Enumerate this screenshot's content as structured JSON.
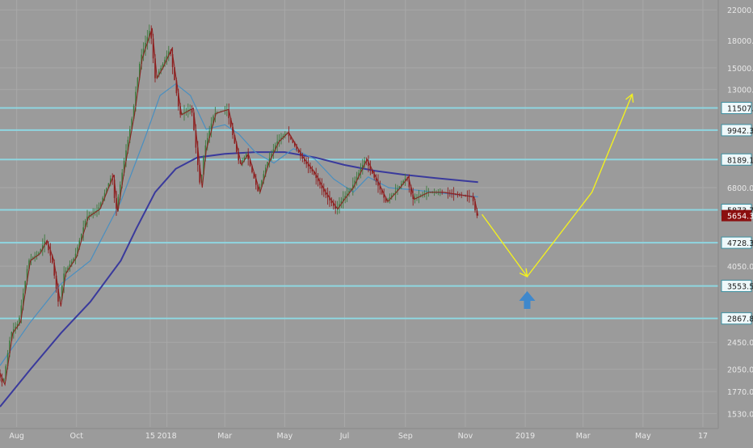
{
  "chart_data": {
    "type": "candlestick",
    "title": "",
    "xlabel": "",
    "ylabel": "",
    "yscale": "log",
    "ylim": [
      1400,
      22500
    ],
    "grid": true,
    "y_ticks": [
      "22000.0",
      "18000.0",
      "15000.0",
      "13000.0",
      "11507.5",
      "9942.3",
      "8189.1",
      "6800.0",
      "5873.7",
      "5654.3",
      "4728.3",
      "4050.0",
      "3553.5",
      "2867.8",
      "2450.0",
      "2050.0",
      "1770.0",
      "1530.0"
    ],
    "x_ticks": [
      "Aug",
      "Oct",
      "15",
      "2018",
      "Mar",
      "May",
      "Jul",
      "Sep",
      "Nov",
      "2019",
      "Mar",
      "May",
      "17"
    ],
    "x_tick_dates": [
      "2017-08-01",
      "2017-10-01",
      "2017-12-15",
      "2018-01-01",
      "2018-03-01",
      "2018-05-01",
      "2018-07-01",
      "2018-09-01",
      "2018-11-01",
      "2019-01-01",
      "2019-03-01",
      "2019-05-01",
      "2019-07-01"
    ],
    "x_range": [
      "2017-07-15",
      "2019-07-15"
    ],
    "horizontal_levels": [
      11507.5,
      9942.3,
      8189.1,
      5873.7,
      4728.3,
      3553.5,
      2867.8
    ],
    "current_price": 5654.3,
    "price_path": [
      [
        "2017-07-15",
        2000
      ],
      [
        "2017-07-20",
        1850
      ],
      [
        "2017-07-28",
        2600
      ],
      [
        "2017-08-05",
        2800
      ],
      [
        "2017-08-15",
        4200
      ],
      [
        "2017-08-25",
        4400
      ],
      [
        "2017-09-01",
        4800
      ],
      [
        "2017-09-08",
        4200
      ],
      [
        "2017-09-15",
        3100
      ],
      [
        "2017-09-20",
        3850
      ],
      [
        "2017-10-01",
        4300
      ],
      [
        "2017-10-13",
        5600
      ],
      [
        "2017-10-25",
        5900
      ],
      [
        "2017-11-08",
        7400
      ],
      [
        "2017-11-12",
        5800
      ],
      [
        "2017-11-20",
        8000
      ],
      [
        "2017-11-29",
        11000
      ],
      [
        "2017-12-07",
        16000
      ],
      [
        "2017-12-17",
        19500
      ],
      [
        "2017-12-22",
        14000
      ],
      [
        "2017-12-28",
        15000
      ],
      [
        "2018-01-06",
        17000
      ],
      [
        "2018-01-16",
        11000
      ],
      [
        "2018-01-28",
        11500
      ],
      [
        "2018-02-06",
        6800
      ],
      [
        "2018-02-10",
        8700
      ],
      [
        "2018-02-20",
        11100
      ],
      [
        "2018-03-05",
        11400
      ],
      [
        "2018-03-18",
        7900
      ],
      [
        "2018-03-25",
        8500
      ],
      [
        "2018-04-06",
        6600
      ],
      [
        "2018-04-15",
        8000
      ],
      [
        "2018-04-25",
        9200
      ],
      [
        "2018-05-05",
        9800
      ],
      [
        "2018-05-20",
        8300
      ],
      [
        "2018-06-01",
        7500
      ],
      [
        "2018-06-12",
        6600
      ],
      [
        "2018-06-24",
        5900
      ],
      [
        "2018-07-01",
        6300
      ],
      [
        "2018-07-10",
        6800
      ],
      [
        "2018-07-24",
        8200
      ],
      [
        "2018-08-05",
        7000
      ],
      [
        "2018-08-14",
        6200
      ],
      [
        "2018-08-25",
        6700
      ],
      [
        "2018-09-04",
        7300
      ],
      [
        "2018-09-10",
        6300
      ],
      [
        "2018-09-25",
        6600
      ],
      [
        "2018-10-10",
        6600
      ],
      [
        "2018-10-25",
        6500
      ],
      [
        "2018-11-10",
        6400
      ],
      [
        "2018-11-14",
        5654.3
      ]
    ],
    "ma_short": [
      [
        "2017-07-15",
        2100
      ],
      [
        "2017-08-15",
        2800
      ],
      [
        "2017-09-15",
        3600
      ],
      [
        "2017-10-15",
        4200
      ],
      [
        "2017-11-15",
        6200
      ],
      [
        "2017-12-10",
        9500
      ],
      [
        "2017-12-25",
        12500
      ],
      [
        "2018-01-10",
        13500
      ],
      [
        "2018-01-25",
        12500
      ],
      [
        "2018-02-10",
        10000
      ],
      [
        "2018-03-01",
        10300
      ],
      [
        "2018-03-15",
        9700
      ],
      [
        "2018-04-01",
        8600
      ],
      [
        "2018-04-20",
        8000
      ],
      [
        "2018-05-10",
        8800
      ],
      [
        "2018-06-01",
        8200
      ],
      [
        "2018-06-20",
        7200
      ],
      [
        "2018-07-10",
        6600
      ],
      [
        "2018-07-25",
        7300
      ],
      [
        "2018-08-15",
        6800
      ],
      [
        "2018-09-10",
        6700
      ],
      [
        "2018-10-10",
        6550
      ],
      [
        "2018-11-14",
        6400
      ]
    ],
    "ma_long": [
      [
        "2017-07-15",
        1600
      ],
      [
        "2017-08-15",
        2050
      ],
      [
        "2017-09-15",
        2600
      ],
      [
        "2017-10-15",
        3200
      ],
      [
        "2017-11-15",
        4200
      ],
      [
        "2017-12-01",
        5200
      ],
      [
        "2017-12-20",
        6600
      ],
      [
        "2018-01-10",
        7700
      ],
      [
        "2018-02-01",
        8300
      ],
      [
        "2018-03-01",
        8500
      ],
      [
        "2018-04-01",
        8600
      ],
      [
        "2018-05-01",
        8600
      ],
      [
        "2018-06-01",
        8300
      ],
      [
        "2018-07-01",
        7900
      ],
      [
        "2018-08-01",
        7600
      ],
      [
        "2018-09-01",
        7400
      ],
      [
        "2018-10-01",
        7250
      ],
      [
        "2018-11-14",
        7050
      ]
    ],
    "projection": [
      [
        "2018-11-18",
        5700
      ],
      [
        "2019-01-03",
        3780
      ],
      [
        "2019-03-10",
        6600
      ],
      [
        "2019-04-20",
        12600
      ]
    ],
    "colors": {
      "background": "#9b9b9b",
      "grid": "#a8a8a8",
      "level_line": "#8ed6e0",
      "price": "#8e1f1f",
      "price_up": "#3d7a3d",
      "ma_short": "#4a8fc0",
      "ma_long": "#3a3a9c",
      "projection": "#f2f020",
      "arrow_up": "#3f88cc",
      "price_badge": "#8b0f0f",
      "axis_text": "#e8e8e8"
    }
  }
}
